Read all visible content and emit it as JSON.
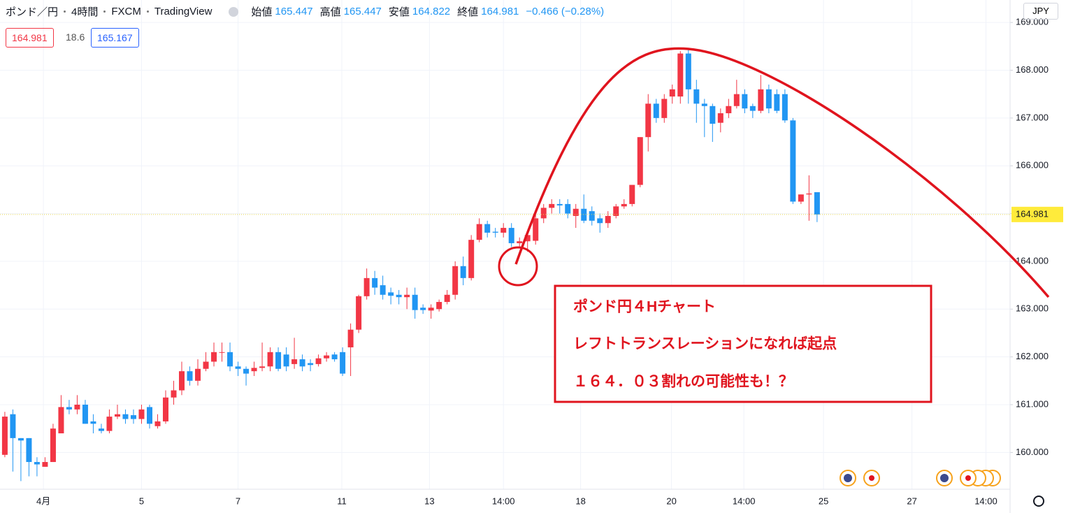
{
  "header": {
    "symbol": "ポンド／円",
    "interval": "4時間",
    "exchange": "FXCM",
    "source": "TradingView",
    "open_label": "始値",
    "open": 165.447,
    "high_label": "高値",
    "high": 165.447,
    "low_label": "安値",
    "low": 164.822,
    "close_label": "終値",
    "close": 164.981,
    "change": "−0.466 (−0.28%)"
  },
  "badges": {
    "bid": 164.981,
    "spread": 18.6,
    "ask": 165.167
  },
  "currency": "JPY",
  "annotation": {
    "lines": [
      "ポンド円４Hチャート",
      "レフトトランスレーションになれば起点",
      "１６４．０３割れの可能性も！？"
    ]
  },
  "chart_data": {
    "type": "candlestick",
    "up_color": "#f23645",
    "down_color": "#2196f3",
    "grid": true,
    "xlim": [
      -0.6,
      125
    ],
    "ylim": [
      159.23,
      169.47
    ],
    "xticks": [
      {
        "value": 4.8,
        "label": "4月"
      },
      {
        "value": 17,
        "label": "5"
      },
      {
        "value": 29,
        "label": "7"
      },
      {
        "value": 41.9,
        "label": "11"
      },
      {
        "value": 52.8,
        "label": "13"
      },
      {
        "value": 62,
        "label": "14:00"
      },
      {
        "value": 71.6,
        "label": "18"
      },
      {
        "value": 82.9,
        "label": "20"
      },
      {
        "value": 91.9,
        "label": "14:00"
      },
      {
        "value": 101.8,
        "label": "25"
      },
      {
        "value": 112.8,
        "label": "27"
      },
      {
        "value": 122,
        "label": "14:00"
      }
    ],
    "yticks": [
      {
        "value": 160,
        "label": "160.000"
      },
      {
        "value": 161,
        "label": "161.000"
      },
      {
        "value": 162,
        "label": "162.000"
      },
      {
        "value": 163,
        "label": "163.000"
      },
      {
        "value": 164,
        "label": "164.000"
      },
      {
        "value": 165,
        "label": "165.000"
      },
      {
        "value": 166,
        "label": "166.000"
      },
      {
        "value": 167,
        "label": "167.000"
      },
      {
        "value": 168,
        "label": "168.000"
      },
      {
        "value": 169,
        "label": "169.000"
      }
    ],
    "last_price": 164.981,
    "open": [
      159.95,
      160.8,
      160.3,
      160.3,
      159.8,
      159.7,
      159.8,
      160.4,
      160.95,
      160.9,
      161,
      160.65,
      160.5,
      160.45,
      160.75,
      160.8,
      160.78,
      160.7,
      160.95,
      160.55,
      160.65,
      161.15,
      161.3,
      161.7,
      161.5,
      161.75,
      161.9,
      162.1,
      162.1,
      161.8,
      161.75,
      161.7,
      161.77,
      161.8,
      162.1,
      162.05,
      161.85,
      161.95,
      161.87,
      161.85,
      161.97,
      162.05,
      162.1,
      162.2,
      162.57,
      163.27,
      163.65,
      163.5,
      163.35,
      163.3,
      163.25,
      163.3,
      163.03,
      162.97,
      163,
      163.15,
      163.3,
      163.9,
      163.65,
      164.45,
      164.78,
      164.62,
      164.6,
      164.7,
      164.38,
      164.42,
      164.43,
      164.9,
      165.12,
      165.2,
      165.2,
      164.95,
      165.1,
      165.05,
      164.9,
      164.8,
      164.95,
      165.15,
      165.2,
      165.6,
      166.6,
      167.3,
      167,
      167.45,
      167.45,
      168.35,
      167.6,
      167.3,
      167.25,
      166.9,
      167.1,
      167.25,
      167.5,
      167.25,
      167.15,
      167.6,
      167.5,
      167.5,
      166.95,
      165.25,
      165.4,
      165.447
    ],
    "high": [
      160.85,
      160.9,
      160.3,
      160.3,
      159.9,
      159.9,
      160.6,
      161.2,
      161.1,
      161.2,
      161.1,
      160.8,
      160.6,
      160.9,
      161,
      160.9,
      160.9,
      161,
      161,
      160.8,
      161.3,
      161.5,
      161.9,
      161.8,
      161.95,
      162.1,
      162.3,
      162.3,
      162.3,
      161.9,
      161.8,
      161.9,
      162.3,
      162.2,
      162.2,
      162.2,
      162.4,
      162.05,
      161.95,
      162.05,
      162.1,
      162.1,
      162.2,
      162.7,
      163.3,
      163.85,
      163.8,
      163.7,
      163.45,
      163.4,
      163.45,
      163.45,
      163.1,
      163.1,
      163.2,
      163.4,
      164,
      164.1,
      164.55,
      164.9,
      164.85,
      164.7,
      164.8,
      164.8,
      164.5,
      164.6,
      165,
      165.2,
      165.3,
      165.3,
      165.3,
      165.2,
      165.4,
      165.15,
      165,
      165.05,
      165.2,
      165.3,
      165.6,
      166.6,
      167.5,
      167.4,
      167.5,
      167.7,
      168.4,
      168.45,
      167.8,
      167.4,
      167.3,
      167.2,
      167.4,
      167.8,
      167.6,
      167.3,
      167.9,
      167.7,
      167.6,
      167.6,
      167,
      165.4,
      165.8,
      165.447
    ],
    "low": [
      159.9,
      159.6,
      159.4,
      159.5,
      159.5,
      159.7,
      159.8,
      160.4,
      160.8,
      160.8,
      160.6,
      160.4,
      160.4,
      160.4,
      160.7,
      160.6,
      160.6,
      160.6,
      160.5,
      160.5,
      160.6,
      161,
      161.2,
      161.4,
      161.4,
      161.7,
      161.8,
      161.9,
      161.7,
      161.6,
      161.4,
      161.6,
      161.7,
      161.7,
      161.7,
      161.7,
      161.75,
      161.7,
      161.7,
      161.8,
      161.9,
      161.9,
      161.6,
      161.6,
      162.5,
      163.2,
      163.3,
      163.2,
      163.1,
      163.1,
      163,
      162.8,
      162.9,
      162.8,
      162.95,
      163.1,
      163.2,
      163.5,
      163.6,
      164.4,
      164.5,
      164.5,
      164.5,
      164.3,
      164.3,
      164.2,
      164.35,
      164.8,
      165,
      165,
      164.9,
      164.7,
      164.8,
      164.75,
      164.6,
      164.7,
      164.9,
      165.1,
      165.15,
      165.55,
      166.3,
      166.9,
      166.9,
      167.3,
      167.3,
      167.3,
      166.9,
      166.6,
      166.5,
      166.7,
      167,
      167.2,
      167.1,
      167,
      167.1,
      167.1,
      167.1,
      166.9,
      165.2,
      165.2,
      164.85,
      164.822
    ],
    "close": [
      160.75,
      160.3,
      160.25,
      159.8,
      159.75,
      159.8,
      160.5,
      160.95,
      160.9,
      161,
      160.6,
      160.6,
      160.45,
      160.75,
      160.8,
      160.7,
      160.7,
      160.9,
      160.6,
      160.65,
      161.15,
      161.3,
      161.7,
      161.5,
      161.75,
      161.9,
      162.1,
      162.1,
      161.8,
      161.75,
      161.65,
      161.77,
      161.8,
      162.1,
      161.75,
      161.8,
      161.95,
      161.8,
      161.83,
      161.97,
      162.03,
      161.95,
      161.65,
      162.57,
      163.27,
      163.65,
      163.45,
      163.3,
      163.28,
      163.25,
      163.3,
      162.98,
      162.98,
      163.03,
      163.15,
      163.3,
      163.9,
      163.65,
      164.45,
      164.78,
      164.6,
      164.6,
      164.7,
      164.38,
      164.42,
      164.55,
      164.9,
      165.12,
      165.2,
      165.17,
      165,
      165.1,
      164.85,
      164.85,
      164.8,
      164.95,
      165.15,
      165.2,
      165.6,
      166.6,
      167.3,
      167,
      167.4,
      167.6,
      168.35,
      167.6,
      167.3,
      167.25,
      166.88,
      167.1,
      167.25,
      167.5,
      167.2,
      167.15,
      167.6,
      167.2,
      167.15,
      166.95,
      165.25,
      165.4,
      165.42,
      164.981
    ]
  }
}
